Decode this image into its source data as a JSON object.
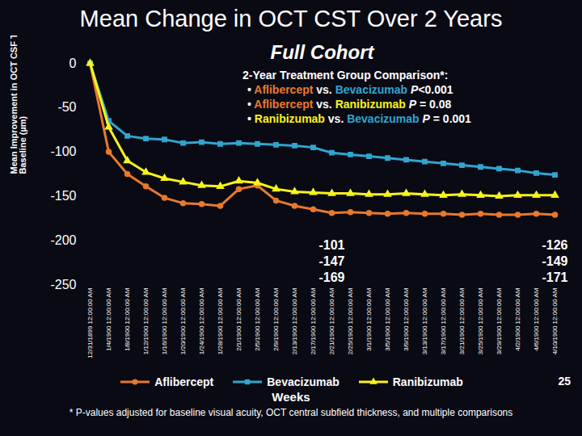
{
  "chart_data": {
    "type": "line",
    "title": "Mean Change in OCT CST Over 2 Years",
    "subtitle": "Full Cohort",
    "x_label": "Weeks",
    "y_label": "Mean Improvement in OCT CSF Thickness from Baseline (µm)",
    "categories": [
      "12/31/1899 12:00:00 AM",
      "1/4/1900 12:00:00 AM",
      "1/8/1900 12:00:00 AM",
      "1/12/1900 12:00:00 AM",
      "1/16/1900 12:00:00 AM",
      "1/20/1900 12:00:00 AM",
      "1/24/1900 12:00:00 AM",
      "1/28/1900 12:00:00 AM",
      "2/1/1900 12:00:00 AM",
      "2/5/1900 12:00:00 AM",
      "2/9/1900 12:00:00 AM",
      "2/13/1900 12:00:00 AM",
      "2/17/1900 12:00:00 AM",
      "2/21/1900 12:00:00 AM",
      "2/25/1900 12:00:00 AM",
      "3/1/1900 12:00:00 AM",
      "3/5/1900 12:00:00 AM",
      "3/9/1900 12:00:00 AM",
      "3/13/1900 12:00:00 AM",
      "3/17/1900 12:00:00 AM",
      "3/21/1900 12:00:00 AM",
      "3/25/1900 12:00:00 AM",
      "3/29/1900 12:00:00 AM",
      "4/2/1900 12:00:00 AM",
      "4/6/1900 12:00:00 AM",
      "4/10/1900 12:00:00 AM"
    ],
    "series": [
      {
        "name": "Aflibercept",
        "color": "#e8792c",
        "marker": "circle",
        "values": [
          0,
          -100,
          -125,
          -139,
          -152,
          -158,
          -159,
          -161,
          -142,
          -138,
          -155,
          -161,
          -165,
          -169,
          -168,
          -169,
          -170,
          -169,
          -170,
          -170,
          -171,
          -170,
          -171,
          -171,
          -170,
          -171
        ],
        "value_labels": [
          null,
          null,
          null,
          null,
          null,
          null,
          null,
          null,
          null,
          null,
          null,
          null,
          null,
          "-169",
          null,
          null,
          null,
          null,
          null,
          null,
          null,
          null,
          null,
          null,
          null,
          "-171"
        ]
      },
      {
        "name": "Bevacizumab",
        "color": "#31a5cf",
        "marker": "square",
        "values": [
          0,
          -65,
          -82,
          -85,
          -86,
          -90,
          -89,
          -91,
          -90,
          -91,
          -92,
          -93,
          -95,
          -101,
          -103,
          -105,
          -107,
          -109,
          -111,
          -113,
          -115,
          -117,
          -119,
          -121,
          -124,
          -126
        ],
        "value_labels": [
          null,
          null,
          null,
          null,
          null,
          null,
          null,
          null,
          null,
          null,
          null,
          null,
          null,
          "-101",
          null,
          null,
          null,
          null,
          null,
          null,
          null,
          null,
          null,
          null,
          null,
          "-126"
        ]
      },
      {
        "name": "Ranibizumab",
        "color": "#f7f41c",
        "marker": "triangle",
        "values": [
          0,
          -72,
          -110,
          -123,
          -130,
          -134,
          -138,
          -139,
          -133,
          -135,
          -142,
          -145,
          -146,
          -147,
          -147,
          -148,
          -148,
          -147,
          -148,
          -149,
          -148,
          -149,
          -150,
          -149,
          -149,
          -149
        ],
        "value_labels": [
          null,
          null,
          null,
          null,
          null,
          null,
          null,
          null,
          null,
          null,
          null,
          null,
          null,
          "-147",
          null,
          null,
          null,
          null,
          null,
          null,
          null,
          null,
          null,
          null,
          null,
          "-149"
        ]
      }
    ],
    "ylim": [
      -250,
      0
    ],
    "yticks": [
      -250,
      -200,
      -150,
      -100,
      -50,
      0
    ],
    "grid": false,
    "legend": "bottom",
    "comparison": {
      "title": "2-Year Treatment Group Comparison*:",
      "bullet": "•",
      "rows": [
        [
          "Aflibercept",
          "vs.",
          "Bevacizumab",
          "P<0.001"
        ],
        [
          "Aflibercept",
          "vs.",
          "Ranibizumab",
          "P = 0.08"
        ],
        [
          "Ranibizumab",
          "vs.",
          "Bevacizumab",
          "P = 0.001"
        ]
      ]
    },
    "footnote": "* P-values adjusted for baseline visual acuity, OCT central subfield thickness, and multiple comparisons",
    "page_number": 25
  }
}
